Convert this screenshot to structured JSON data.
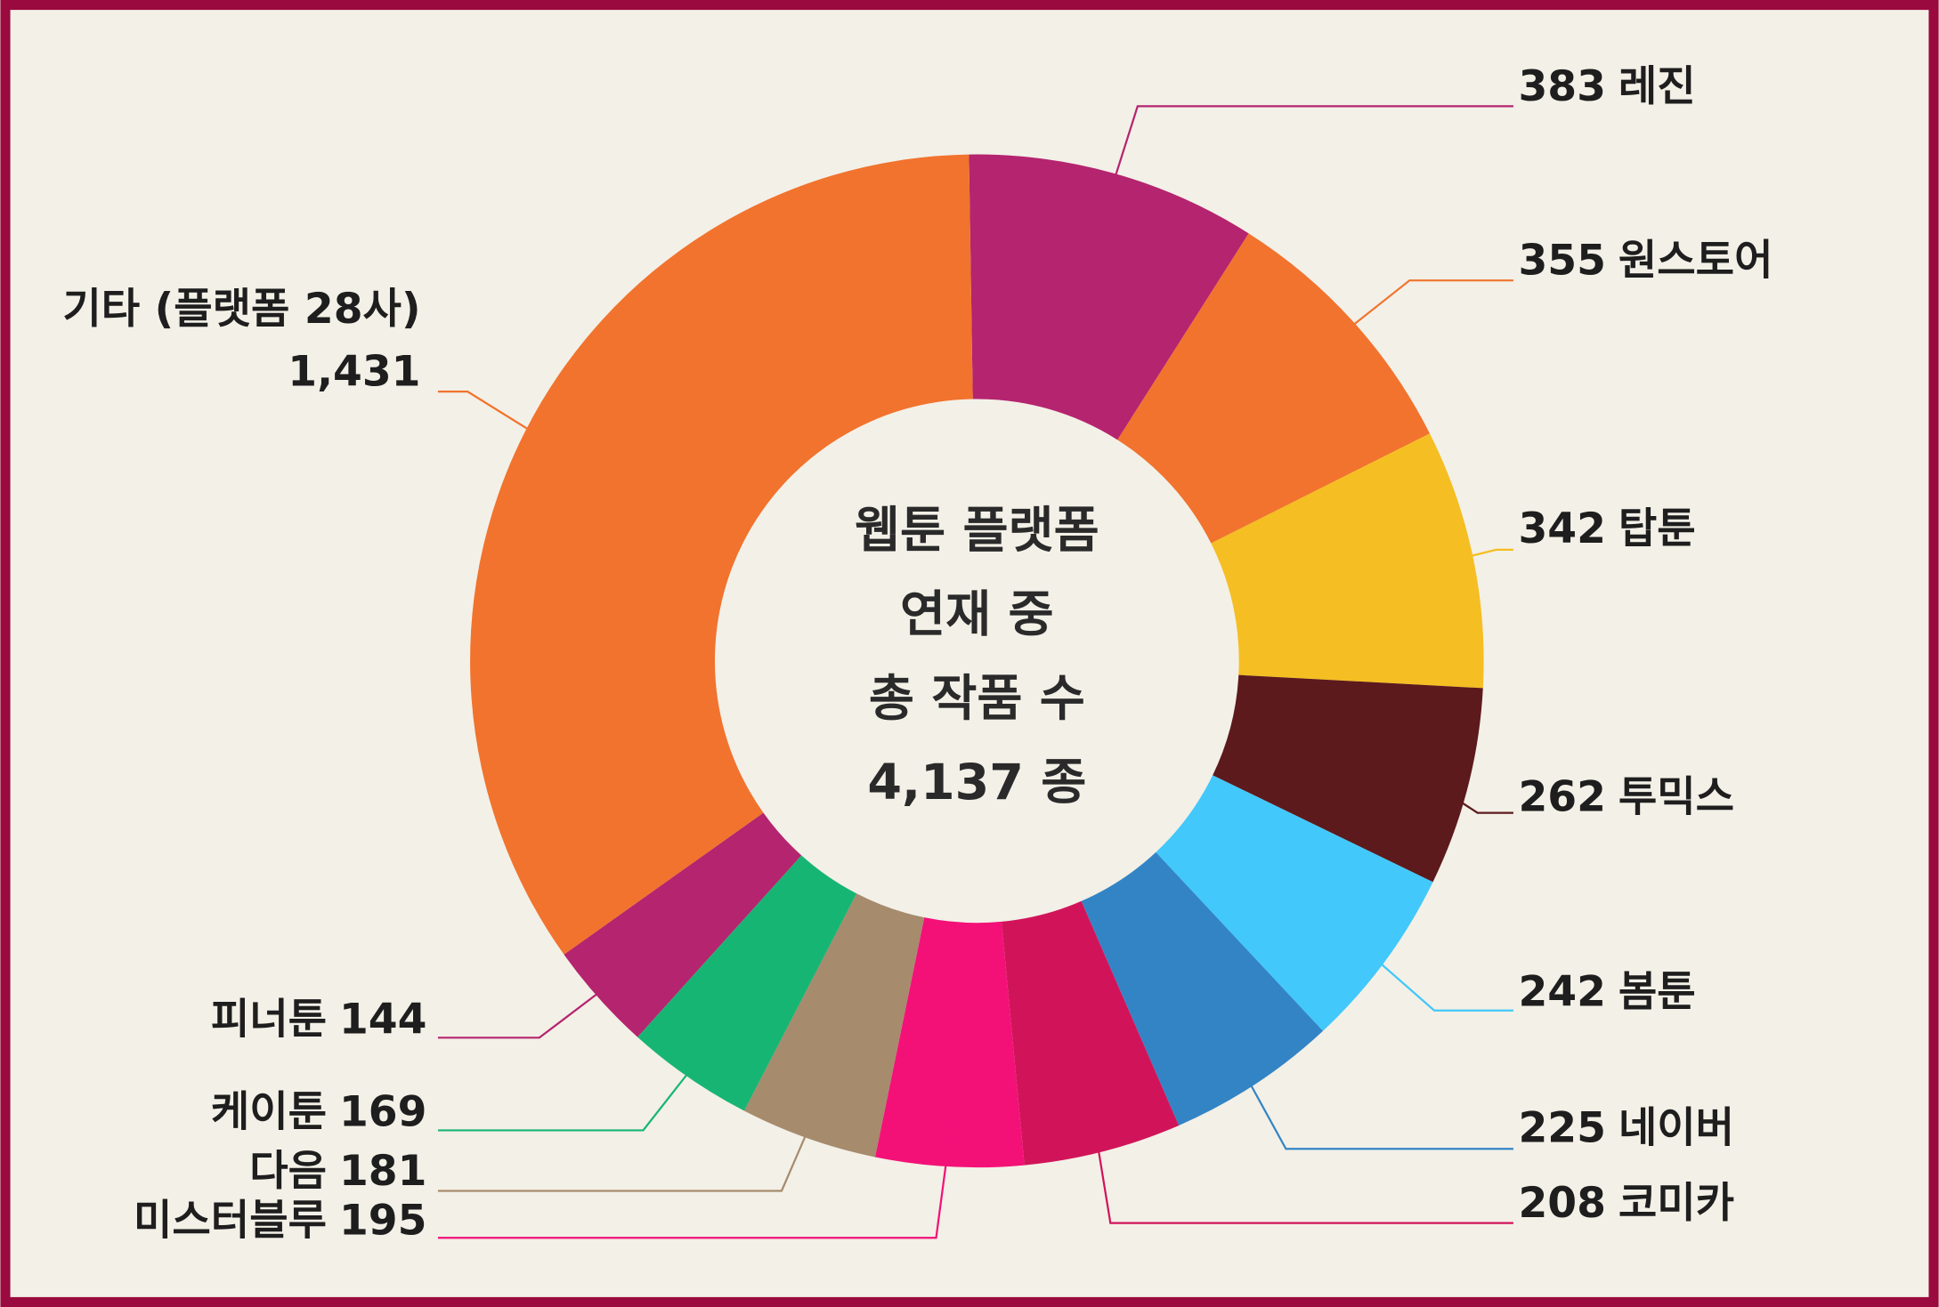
{
  "chart_data": {
    "type": "donut",
    "center_text": [
      "웹툰 플랫폼",
      "연재 중",
      "총 작품 수",
      "4,137 종"
    ],
    "categories": [
      "레진",
      "원스토어",
      "탑툰",
      "투믹스",
      "봄툰",
      "네이버",
      "코미카",
      "미스터블루",
      "다음",
      "케이툰",
      "피너툰",
      "기타 (플랫폼 28사)"
    ],
    "values": [
      383,
      355,
      342,
      262,
      242,
      225,
      208,
      195,
      181,
      169,
      144,
      1431
    ],
    "value_labels": [
      "383",
      "355",
      "342",
      "262",
      "242",
      "225",
      "208",
      "195",
      "181",
      "169",
      "144",
      "1,431"
    ],
    "colors": [
      "#b5246f",
      "#f1732e",
      "#f5be22",
      "#5c1a1d",
      "#42c8fb",
      "#3384c5",
      "#d1145a",
      "#f31178",
      "#a68b6d",
      "#17b573",
      "#b5246f",
      "#f1732e"
    ]
  }
}
